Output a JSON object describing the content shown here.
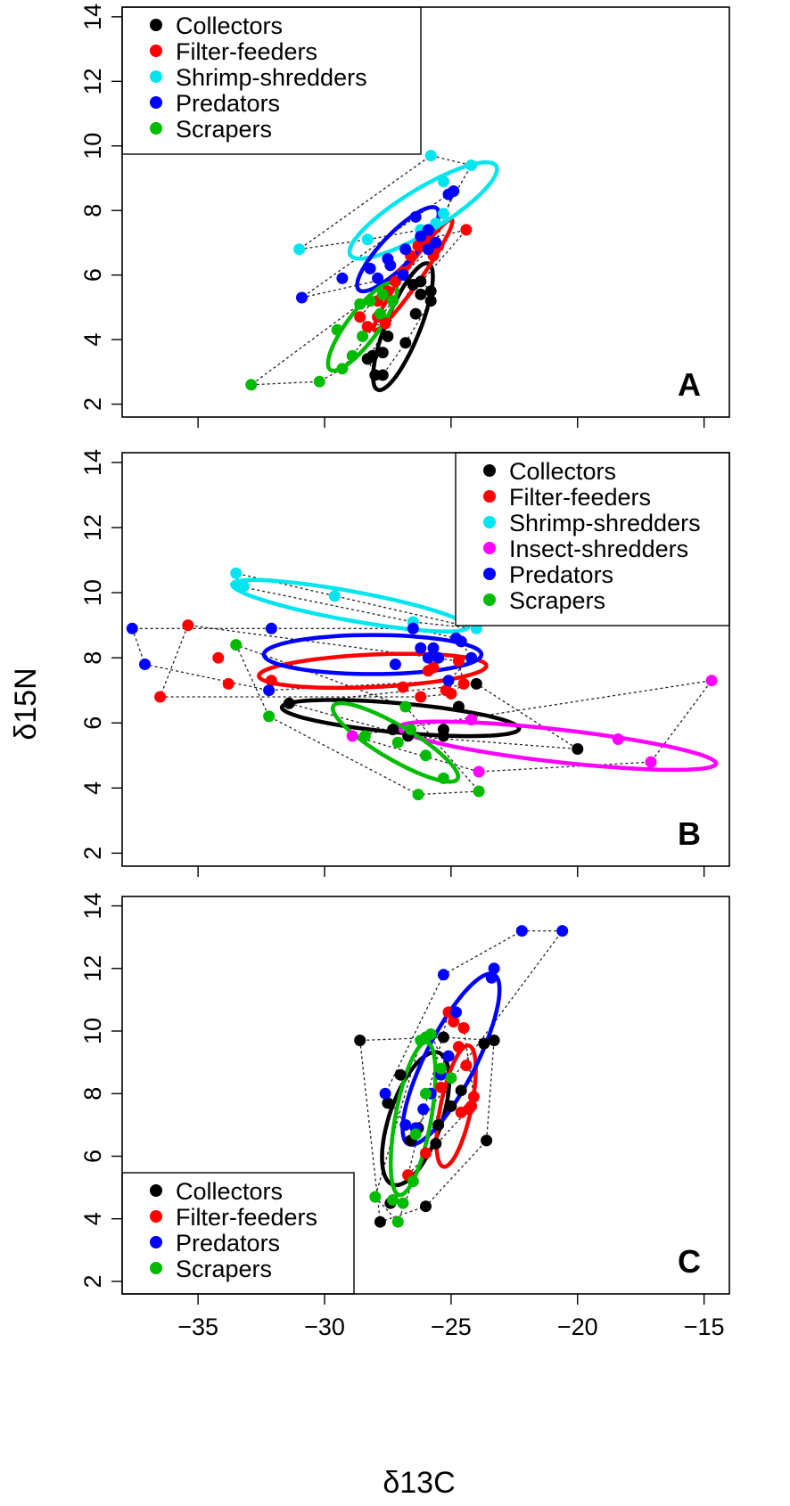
{
  "figure": {
    "xlabel": "δ13C",
    "ylabel": "δ15N"
  },
  "chart_data": [
    {
      "type": "scatter",
      "panel_letter": "A",
      "xlim": [
        -38,
        -14
      ],
      "ylim": [
        1.6,
        14.3
      ],
      "xticks": [
        -35,
        -30,
        -25,
        -20,
        -15
      ],
      "yticks": [
        2,
        4,
        6,
        8,
        10,
        12,
        14
      ],
      "show_x_tick_labels": false,
      "legend": {
        "position": "top-left",
        "entries": [
          "Collectors",
          "Filter-feeders",
          "Shrimp-shredders",
          "Predators",
          "Scrapers"
        ]
      },
      "series": [
        {
          "name": "Collectors",
          "color": "#000000",
          "points": [
            [
              -28.3,
              3.4
            ],
            [
              -28.1,
              3.5
            ],
            [
              -28.0,
              2.9
            ],
            [
              -27.7,
              2.9
            ],
            [
              -27.5,
              4.1
            ],
            [
              -27.7,
              3.6
            ],
            [
              -26.8,
              3.9
            ],
            [
              -26.4,
              4.8
            ],
            [
              -26.2,
              5.4
            ],
            [
              -26.2,
              5.8
            ],
            [
              -25.8,
              5.5
            ],
            [
              -25.8,
              5.2
            ],
            [
              -26.5,
              5.7
            ]
          ],
          "ellipse": {
            "cx": -26.9,
            "cy": 4.4,
            "rx": 2.2,
            "ry": 0.65,
            "angle": 62
          }
        },
        {
          "name": "Filter-feeders",
          "color": "#ff0000",
          "points": [
            [
              -28.6,
              4.7
            ],
            [
              -28.3,
              4.4
            ],
            [
              -27.9,
              4.7
            ],
            [
              -27.6,
              4.5
            ],
            [
              -27.9,
              5.2
            ],
            [
              -27.5,
              5.5
            ],
            [
              -27.2,
              5.8
            ],
            [
              -26.9,
              6.1
            ],
            [
              -26.6,
              6.6
            ],
            [
              -26.3,
              6.9
            ],
            [
              -26.0,
              7.1
            ],
            [
              -25.7,
              6.6
            ],
            [
              -25.5,
              6.9
            ],
            [
              -24.4,
              7.4
            ]
          ],
          "ellipse": {
            "cx": -26.5,
            "cy": 6.0,
            "rx": 2.3,
            "ry": 0.3,
            "angle": 48
          }
        },
        {
          "name": "Shrimp-shredders",
          "color": "#00e5ee",
          "points": [
            [
              -31.0,
              6.8
            ],
            [
              -28.3,
              7.1
            ],
            [
              -25.8,
              9.7
            ],
            [
              -24.2,
              9.4
            ],
            [
              -25.3,
              8.9
            ],
            [
              -25.3,
              7.9
            ],
            [
              -25.6,
              7.6
            ],
            [
              -26.2,
              7.4
            ]
          ],
          "ellipse": {
            "cx": -26.1,
            "cy": 8.0,
            "rx": 3.2,
            "ry": 0.7,
            "angle": 25
          }
        },
        {
          "name": "Predators",
          "color": "#0000ff",
          "points": [
            [
              -30.9,
              5.3
            ],
            [
              -29.3,
              5.9
            ],
            [
              -28.2,
              6.2
            ],
            [
              -27.9,
              5.9
            ],
            [
              -27.5,
              6.5
            ],
            [
              -27.4,
              6.3
            ],
            [
              -26.8,
              6.8
            ],
            [
              -26.4,
              7.8
            ],
            [
              -26.2,
              7.2
            ],
            [
              -25.9,
              7.4
            ],
            [
              -25.6,
              7.0
            ],
            [
              -25.1,
              8.5
            ],
            [
              -24.9,
              8.6
            ],
            [
              -25.9,
              6.8
            ],
            [
              -26.9,
              6.0
            ]
          ],
          "ellipse": {
            "cx": -27.1,
            "cy": 6.8,
            "rx": 2.0,
            "ry": 0.55,
            "angle": 38
          }
        },
        {
          "name": "Scrapers",
          "color": "#00bb00",
          "points": [
            [
              -32.9,
              2.6
            ],
            [
              -30.2,
              2.7
            ],
            [
              -29.3,
              3.1
            ],
            [
              -28.9,
              3.5
            ],
            [
              -29.5,
              4.3
            ],
            [
              -28.5,
              4.1
            ],
            [
              -28.6,
              5.1
            ],
            [
              -28.2,
              5.2
            ],
            [
              -27.7,
              5.4
            ],
            [
              -27.3,
              5.2
            ],
            [
              -27.8,
              4.8
            ]
          ],
          "ellipse": {
            "cx": -28.5,
            "cy": 4.4,
            "rx": 1.85,
            "ry": 0.55,
            "angle": 45
          }
        }
      ]
    },
    {
      "type": "scatter",
      "panel_letter": "B",
      "xlim": [
        -38,
        -14
      ],
      "ylim": [
        1.6,
        14.3
      ],
      "xticks": [
        -35,
        -30,
        -25,
        -20,
        -15
      ],
      "yticks": [
        2,
        4,
        6,
        8,
        10,
        12,
        14
      ],
      "show_x_tick_labels": false,
      "legend": {
        "position": "top-right",
        "entries": [
          "Collectors",
          "Filter-feeders",
          "Shrimp-shredders",
          "Insect-shredders",
          "Predators",
          "Scrapers"
        ]
      },
      "series": [
        {
          "name": "Collectors",
          "color": "#000000",
          "points": [
            [
              -31.4,
              6.6
            ],
            [
              -27.3,
              5.8
            ],
            [
              -26.7,
              5.6
            ],
            [
              -25.3,
              5.8
            ],
            [
              -25.3,
              5.6
            ],
            [
              -24.7,
              6.5
            ],
            [
              -24.0,
              7.2
            ],
            [
              -20.0,
              5.2
            ]
          ],
          "ellipse": {
            "cx": -27.0,
            "cy": 6.15,
            "rx": 4.7,
            "ry": 0.45,
            "angle": -4
          }
        },
        {
          "name": "Filter-feeders",
          "color": "#ff0000",
          "points": [
            [
              -36.5,
              6.8
            ],
            [
              -35.4,
              9.0
            ],
            [
              -34.2,
              8.0
            ],
            [
              -33.8,
              7.2
            ],
            [
              -32.1,
              7.3
            ],
            [
              -26.9,
              7.1
            ],
            [
              -26.2,
              6.8
            ],
            [
              -25.9,
              7.6
            ],
            [
              -25.7,
              7.7
            ],
            [
              -25.2,
              7.0
            ],
            [
              -24.7,
              7.9
            ],
            [
              -24.5,
              7.2
            ],
            [
              -25.0,
              6.9
            ]
          ],
          "ellipse": {
            "cx": -28.1,
            "cy": 7.6,
            "rx": 4.5,
            "ry": 0.5,
            "angle": 2
          }
        },
        {
          "name": "Shrimp-shredders",
          "color": "#00e5ee",
          "points": [
            [
              -33.5,
              10.6
            ],
            [
              -33.4,
              10.2
            ],
            [
              -33.2,
              10.2
            ],
            [
              -29.6,
              9.9
            ],
            [
              -26.5,
              9.1
            ],
            [
              -24.0,
              8.9
            ]
          ],
          "ellipse": {
            "cx": -29.0,
            "cy": 9.6,
            "rx": 4.7,
            "ry": 0.45,
            "angle": -8
          }
        },
        {
          "name": "Insect-shredders",
          "color": "#ff00ff",
          "points": [
            [
              -28.9,
              5.6
            ],
            [
              -24.2,
              6.1
            ],
            [
              -23.9,
              4.5
            ],
            [
              -18.4,
              5.5
            ],
            [
              -17.1,
              4.8
            ],
            [
              -14.7,
              7.3
            ]
          ],
          "ellipse": {
            "cx": -20.8,
            "cy": 5.3,
            "rx": 6.3,
            "ry": 0.5,
            "angle": -5
          }
        },
        {
          "name": "Predators",
          "color": "#0000ff",
          "points": [
            [
              -37.6,
              8.9
            ],
            [
              -37.1,
              7.8
            ],
            [
              -32.2,
              7.0
            ],
            [
              -32.1,
              8.9
            ],
            [
              -27.2,
              7.8
            ],
            [
              -26.5,
              8.9
            ],
            [
              -26.2,
              8.3
            ],
            [
              -25.9,
              8.0
            ],
            [
              -25.7,
              8.3
            ],
            [
              -25.5,
              8.0
            ],
            [
              -25.1,
              7.3
            ],
            [
              -24.8,
              8.6
            ],
            [
              -24.6,
              8.5
            ],
            [
              -24.2,
              8.0
            ]
          ],
          "ellipse": {
            "cx": -28.1,
            "cy": 8.1,
            "rx": 4.3,
            "ry": 0.6,
            "angle": 0
          }
        },
        {
          "name": "Scrapers",
          "color": "#00bb00",
          "points": [
            [
              -33.5,
              8.4
            ],
            [
              -32.2,
              6.2
            ],
            [
              -28.4,
              5.6
            ],
            [
              -27.1,
              5.4
            ],
            [
              -26.8,
              6.5
            ],
            [
              -26.6,
              5.8
            ],
            [
              -26.3,
              3.8
            ],
            [
              -26.0,
              5.0
            ],
            [
              -25.3,
              4.3
            ],
            [
              -23.9,
              3.9
            ]
          ],
          "ellipse": {
            "cx": -27.2,
            "cy": 5.4,
            "rx": 2.7,
            "ry": 0.55,
            "angle": -24
          }
        }
      ]
    },
    {
      "type": "scatter",
      "panel_letter": "C",
      "xlim": [
        -38,
        -14
      ],
      "ylim": [
        1.6,
        14.3
      ],
      "xticks": [
        -35,
        -30,
        -25,
        -20,
        -15
      ],
      "yticks": [
        2,
        4,
        6,
        8,
        10,
        12,
        14
      ],
      "show_x_tick_labels": true,
      "legend": {
        "position": "bottom-left",
        "entries": [
          "Collectors",
          "Filter-feeders",
          "Predators",
          "Scrapers"
        ]
      },
      "series": [
        {
          "name": "Collectors",
          "color": "#000000",
          "points": [
            [
              -28.6,
              9.7
            ],
            [
              -27.8,
              3.9
            ],
            [
              -27.4,
              4.5
            ],
            [
              -27.5,
              7.7
            ],
            [
              -27.0,
              8.6
            ],
            [
              -26.6,
              6.5
            ],
            [
              -26.3,
              6.9
            ],
            [
              -26.0,
              4.4
            ],
            [
              -25.6,
              6.4
            ],
            [
              -25.5,
              7.0
            ],
            [
              -25.3,
              9.8
            ],
            [
              -25.0,
              7.6
            ],
            [
              -24.6,
              8.1
            ],
            [
              -23.7,
              9.6
            ],
            [
              -23.6,
              6.5
            ],
            [
              -23.3,
              9.7
            ]
          ],
          "ellipse": {
            "cx": -26.4,
            "cy": 7.2,
            "rx": 2.3,
            "ry": 1.0,
            "angle": 65
          }
        },
        {
          "name": "Filter-feeders",
          "color": "#ff0000",
          "points": [
            [
              -26.7,
              5.4
            ],
            [
              -26.0,
              6.1
            ],
            [
              -25.4,
              8.2
            ],
            [
              -25.1,
              10.6
            ],
            [
              -24.9,
              10.3
            ],
            [
              -24.7,
              9.5
            ],
            [
              -24.5,
              10.1
            ],
            [
              -24.4,
              8.9
            ],
            [
              -24.6,
              7.4
            ],
            [
              -24.3,
              7.5
            ],
            [
              -24.1,
              7.9
            ],
            [
              -24.2,
              7.6
            ]
          ],
          "ellipse": {
            "cx": -24.8,
            "cy": 7.6,
            "rx": 2.0,
            "ry": 0.6,
            "angle": 75
          }
        },
        {
          "name": "Predators",
          "color": "#0000ff",
          "points": [
            [
              -27.6,
              8.0
            ],
            [
              -26.8,
              7.0
            ],
            [
              -26.4,
              6.9
            ],
            [
              -26.1,
              7.5
            ],
            [
              -25.8,
              8.0
            ],
            [
              -25.4,
              8.6
            ],
            [
              -25.1,
              9.2
            ],
            [
              -24.8,
              10.6
            ],
            [
              -25.3,
              11.8
            ],
            [
              -23.4,
              11.7
            ],
            [
              -23.3,
              12.0
            ],
            [
              -22.2,
              13.2
            ],
            [
              -20.6,
              13.2
            ]
          ],
          "ellipse": {
            "cx": -25.0,
            "cy": 9.1,
            "rx": 3.2,
            "ry": 0.95,
            "angle": 57
          }
        },
        {
          "name": "Scrapers",
          "color": "#00bb00",
          "points": [
            [
              -28.0,
              4.7
            ],
            [
              -27.3,
              4.6
            ],
            [
              -27.1,
              3.9
            ],
            [
              -26.9,
              4.5
            ],
            [
              -26.5,
              5.2
            ],
            [
              -26.4,
              6.7
            ],
            [
              -26.0,
              8.0
            ],
            [
              -26.0,
              9.8
            ],
            [
              -25.8,
              9.9
            ],
            [
              -25.4,
              8.8
            ],
            [
              -25.0,
              8.5
            ],
            [
              -26.2,
              9.7
            ]
          ],
          "ellipse": {
            "cx": -26.5,
            "cy": 7.2,
            "rx": 2.5,
            "ry": 0.7,
            "angle": 77
          }
        }
      ]
    }
  ]
}
